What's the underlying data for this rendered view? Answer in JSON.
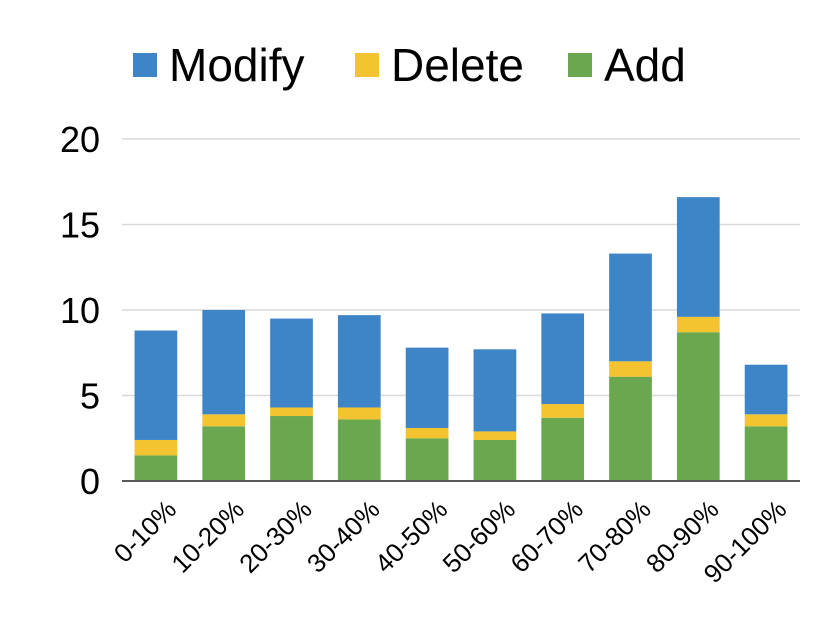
{
  "chart_data": {
    "type": "bar",
    "stacked": true,
    "categories": [
      "0-10%",
      "10-20%",
      "20-30%",
      "30-40%",
      "40-50%",
      "50-60%",
      "60-70%",
      "70-80%",
      "80-90%",
      "90-100%"
    ],
    "series": [
      {
        "name": "Add",
        "color": "#6aa84f",
        "values": [
          1.5,
          3.2,
          3.8,
          3.6,
          2.5,
          2.4,
          3.7,
          6.1,
          8.7,
          3.2
        ]
      },
      {
        "name": "Delete",
        "color": "#f4c430",
        "values": [
          0.9,
          0.7,
          0.5,
          0.7,
          0.6,
          0.5,
          0.8,
          0.9,
          0.9,
          0.7
        ]
      },
      {
        "name": "Modify",
        "color": "#3d85c6",
        "values": [
          6.4,
          6.1,
          5.2,
          5.4,
          4.7,
          4.8,
          5.3,
          6.3,
          7.0,
          2.9
        ]
      }
    ],
    "legend_order": [
      "Modify",
      "Delete",
      "Add"
    ],
    "legend_position": "top",
    "ylim": [
      0,
      20
    ],
    "yticks": [
      "0",
      "5",
      "10",
      "15",
      "20"
    ],
    "grid": true,
    "title": "",
    "xlabel": "",
    "ylabel": ""
  }
}
